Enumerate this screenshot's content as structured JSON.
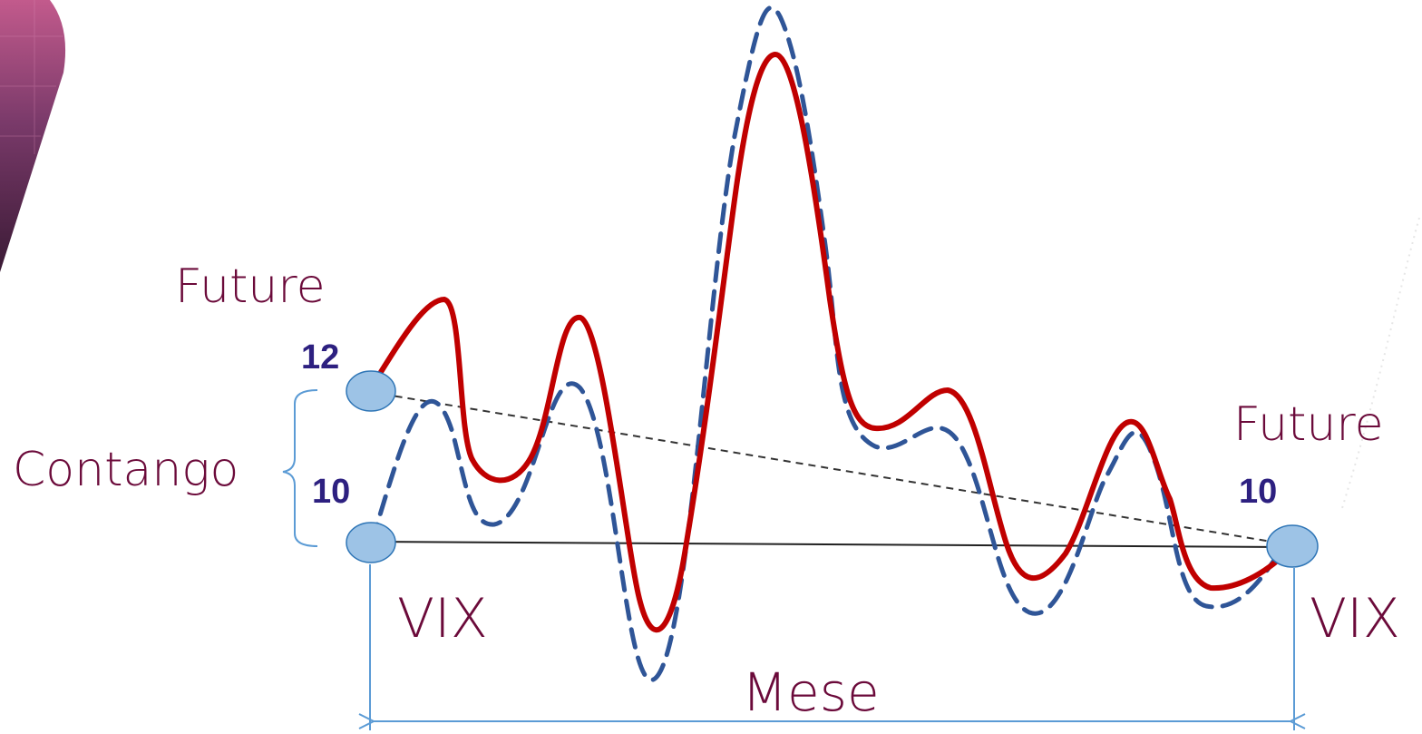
{
  "labels": {
    "future_left": "Future",
    "future_right": "Future",
    "value_future_left": "12",
    "value_vix_left": "10",
    "value_future_right": "10",
    "contango": "Contango",
    "vix_left": "VIX",
    "vix_right": "VIX",
    "mese": "Mese"
  },
  "colors": {
    "future_curve": "#c00000",
    "vix_curve": "#2f5597",
    "marker_fill": "#9dc3e6",
    "marker_stroke": "#2e75b6",
    "label_text": "#6b0a3a",
    "value_text": "#2d2080",
    "bracket": "#5b9bd5",
    "corner_decoration": "#7a3a6a"
  }
}
